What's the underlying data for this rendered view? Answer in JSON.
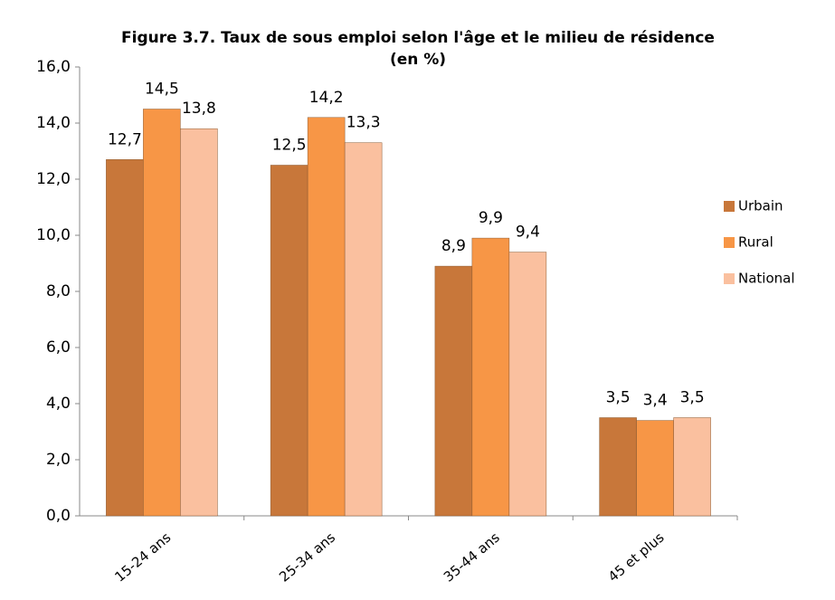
{
  "chart_data": {
    "type": "bar",
    "title": [
      "Figure 3.7. Taux de sous emploi selon l'âge et le milieu de résidence",
      "(en %)"
    ],
    "categories": [
      "15-24 ans",
      "25-34 ans",
      "35-44 ans",
      "45 et plus"
    ],
    "series": [
      {
        "name": "Urbain",
        "color": "#c8773a",
        "values": [
          12.7,
          12.5,
          8.9,
          3.5
        ],
        "value_labels": [
          "12,7",
          "12,5",
          "8,9",
          "3,5"
        ]
      },
      {
        "name": "Rural",
        "color": "#f79646",
        "values": [
          14.5,
          14.2,
          9.9,
          3.4
        ],
        "value_labels": [
          "14,5",
          "14,2",
          "9,9",
          "3,4"
        ]
      },
      {
        "name": "National",
        "color": "#fac09f",
        "values": [
          13.8,
          13.3,
          9.4,
          3.5
        ],
        "value_labels": [
          "13,8",
          "13,3",
          "9,4",
          "3,5"
        ]
      }
    ],
    "ylim": [
      0,
      16
    ],
    "yticks": [
      {
        "value": 0,
        "label": "0,0"
      },
      {
        "value": 2,
        "label": "2,0"
      },
      {
        "value": 4,
        "label": "4,0"
      },
      {
        "value": 6,
        "label": "6,0"
      },
      {
        "value": 8,
        "label": "8,0"
      },
      {
        "value": 10,
        "label": "10,0"
      },
      {
        "value": 12,
        "label": "12,0"
      },
      {
        "value": 14,
        "label": "14,0"
      },
      {
        "value": 16,
        "label": "16,0"
      }
    ],
    "grid": false,
    "legend": "right"
  }
}
